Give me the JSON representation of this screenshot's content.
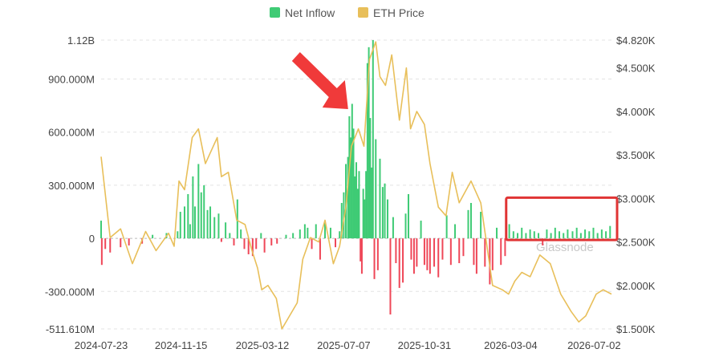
{
  "chart_data": {
    "type": "bar+line",
    "legend": [
      {
        "name": "Net Inflow",
        "color": "#3fcb75"
      },
      {
        "name": "ETH Price",
        "color": "#e8bf5a"
      }
    ],
    "legend_position": "top-center",
    "colors": {
      "inflow_positive": "#3fcb75",
      "inflow_negative": "#ef4758",
      "price_line": "#e8bf5a",
      "highlight_box": "#e03434",
      "arrow": "#f03a3a",
      "grid": "#e3e3e3"
    },
    "x_ticks": [
      "2024-07-23",
      "2024-11-15",
      "2025-03-12",
      "2025-07-07",
      "2025-10-31",
      "2026-03-04",
      "2026-07-02"
    ],
    "x_range": [
      "2024-07-23",
      "2026-07-27"
    ],
    "y_left": {
      "ticks": [
        {
          "v": 1120,
          "label": "1.12B"
        },
        {
          "v": 900,
          "label": "900.000M"
        },
        {
          "v": 600,
          "label": "600.000M"
        },
        {
          "v": 300,
          "label": "300.000M"
        },
        {
          "v": 0,
          "label": "0"
        },
        {
          "v": -300,
          "label": "-300.000M"
        },
        {
          "v": -511.61,
          "label": "-511.610M"
        }
      ],
      "range": [
        -511.61,
        1120
      ],
      "unit": "millions USD"
    },
    "y_right": {
      "ticks": [
        {
          "v": 4820,
          "label": "$4.820K"
        },
        {
          "v": 4500,
          "label": "$4.500K"
        },
        {
          "v": 4000,
          "label": "$4.000K"
        },
        {
          "v": 3500,
          "label": "$3.500K"
        },
        {
          "v": 3000,
          "label": "$3.000K"
        },
        {
          "v": 2500,
          "label": "$2.500K"
        },
        {
          "v": 2000,
          "label": "$2.000K"
        },
        {
          "v": 1500,
          "label": "$1.500K"
        }
      ],
      "range": [
        1500,
        4820
      ],
      "unit": "USD"
    },
    "grid": "horizontal",
    "net_inflow": [
      [
        "2024-07-23",
        100
      ],
      [
        "2024-07-24",
        -150
      ],
      [
        "2024-07-29",
        -60
      ],
      [
        "2024-08-05",
        -80
      ],
      [
        "2024-08-20",
        -50
      ],
      [
        "2024-09-01",
        -40
      ],
      [
        "2024-09-20",
        -30
      ],
      [
        "2024-10-05",
        20
      ],
      [
        "2024-10-25",
        30
      ],
      [
        "2024-11-10",
        40
      ],
      [
        "2024-11-14",
        150
      ],
      [
        "2024-11-20",
        180
      ],
      [
        "2024-11-25",
        250
      ],
      [
        "2024-11-28",
        80
      ],
      [
        "2024-12-02",
        350
      ],
      [
        "2024-12-05",
        180
      ],
      [
        "2024-12-10",
        420
      ],
      [
        "2024-12-14",
        260
      ],
      [
        "2024-12-18",
        300
      ],
      [
        "2024-12-23",
        160
      ],
      [
        "2024-12-27",
        180
      ],
      [
        "2025-01-02",
        120
      ],
      [
        "2025-01-08",
        140
      ],
      [
        "2025-01-12",
        -20
      ],
      [
        "2025-01-18",
        90
      ],
      [
        "2025-01-24",
        30
      ],
      [
        "2025-01-30",
        -40
      ],
      [
        "2025-02-04",
        220
      ],
      [
        "2025-02-09",
        50
      ],
      [
        "2025-02-14",
        -60
      ],
      [
        "2025-02-20",
        -90
      ],
      [
        "2025-02-26",
        -100
      ],
      [
        "2025-03-03",
        -60
      ],
      [
        "2025-03-10",
        30
      ],
      [
        "2025-03-15",
        -80
      ],
      [
        "2025-03-25",
        -40
      ],
      [
        "2025-04-02",
        -30
      ],
      [
        "2025-04-15",
        20
      ],
      [
        "2025-04-25",
        30
      ],
      [
        "2025-05-05",
        50
      ],
      [
        "2025-05-12",
        80
      ],
      [
        "2025-05-16",
        60
      ],
      [
        "2025-05-22",
        -60
      ],
      [
        "2025-05-28",
        80
      ],
      [
        "2025-06-03",
        -120
      ],
      [
        "2025-06-10",
        100
      ],
      [
        "2025-06-18",
        60
      ],
      [
        "2025-06-25",
        -50
      ],
      [
        "2025-07-01",
        40
      ],
      [
        "2025-07-04",
        200
      ],
      [
        "2025-07-07",
        260
      ],
      [
        "2025-07-10",
        420
      ],
      [
        "2025-07-13",
        460
      ],
      [
        "2025-07-15",
        690
      ],
      [
        "2025-07-17",
        570
      ],
      [
        "2025-07-19",
        760
      ],
      [
        "2025-07-21",
        620
      ],
      [
        "2025-07-23",
        350
      ],
      [
        "2025-07-25",
        430
      ],
      [
        "2025-07-27",
        280
      ],
      [
        "2025-07-29",
        380
      ],
      [
        "2025-07-31",
        -130
      ],
      [
        "2025-08-02",
        -200
      ],
      [
        "2025-08-04",
        280
      ],
      [
        "2025-08-06",
        220
      ],
      [
        "2025-08-08",
        380
      ],
      [
        "2025-08-10",
        990
      ],
      [
        "2025-08-12",
        1080
      ],
      [
        "2025-08-14",
        680
      ],
      [
        "2025-08-16",
        400
      ],
      [
        "2025-08-18",
        1120
      ],
      [
        "2025-08-20",
        -230
      ],
      [
        "2025-08-22",
        560
      ],
      [
        "2025-08-25",
        -180
      ],
      [
        "2025-08-28",
        450
      ],
      [
        "2025-09-01",
        290
      ],
      [
        "2025-09-04",
        310
      ],
      [
        "2025-09-08",
        220
      ],
      [
        "2025-09-12",
        -430
      ],
      [
        "2025-09-16",
        120
      ],
      [
        "2025-09-20",
        -140
      ],
      [
        "2025-09-25",
        -280
      ],
      [
        "2025-09-30",
        -250
      ],
      [
        "2025-10-04",
        140
      ],
      [
        "2025-10-08",
        250
      ],
      [
        "2025-10-12",
        -120
      ],
      [
        "2025-10-16",
        -200
      ],
      [
        "2025-10-20",
        -160
      ],
      [
        "2025-10-26",
        100
      ],
      [
        "2025-10-31",
        -150
      ],
      [
        "2025-11-04",
        -180
      ],
      [
        "2025-11-08",
        -200
      ],
      [
        "2025-11-14",
        -160
      ],
      [
        "2025-11-20",
        -220
      ],
      [
        "2025-11-26",
        -120
      ],
      [
        "2025-12-02",
        130
      ],
      [
        "2025-12-08",
        -150
      ],
      [
        "2025-12-14",
        80
      ],
      [
        "2025-12-20",
        -140
      ],
      [
        "2025-12-26",
        -100
      ],
      [
        "2026-01-02",
        160
      ],
      [
        "2026-01-06",
        200
      ],
      [
        "2026-01-10",
        -150
      ],
      [
        "2026-01-14",
        -200
      ],
      [
        "2026-01-20",
        150
      ],
      [
        "2026-01-26",
        -160
      ],
      [
        "2026-02-02",
        -260
      ],
      [
        "2026-02-06",
        -180
      ],
      [
        "2026-02-12",
        60
      ],
      [
        "2026-02-18",
        -150
      ],
      [
        "2026-02-24",
        -100
      ],
      [
        "2026-03-02",
        80
      ],
      [
        "2026-03-08",
        40
      ],
      [
        "2026-03-14",
        30
      ],
      [
        "2026-03-20",
        60
      ],
      [
        "2026-03-26",
        30
      ],
      [
        "2026-04-01",
        50
      ],
      [
        "2026-04-07",
        40
      ],
      [
        "2026-04-13",
        30
      ],
      [
        "2026-04-19",
        -40
      ],
      [
        "2026-04-25",
        50
      ],
      [
        "2026-05-01",
        30
      ],
      [
        "2026-05-07",
        60
      ],
      [
        "2026-05-13",
        40
      ],
      [
        "2026-05-19",
        30
      ],
      [
        "2026-05-25",
        50
      ],
      [
        "2026-06-01",
        40
      ],
      [
        "2026-06-07",
        60
      ],
      [
        "2026-06-13",
        30
      ],
      [
        "2026-06-19",
        50
      ],
      [
        "2026-06-25",
        40
      ],
      [
        "2026-07-01",
        60
      ],
      [
        "2026-07-07",
        30
      ],
      [
        "2026-07-13",
        50
      ],
      [
        "2026-07-19",
        40
      ],
      [
        "2026-07-25",
        70
      ]
    ],
    "eth_price": [
      [
        "2024-07-23",
        3480
      ],
      [
        "2024-08-05",
        2550
      ],
      [
        "2024-08-20",
        2650
      ],
      [
        "2024-09-06",
        2250
      ],
      [
        "2024-09-25",
        2620
      ],
      [
        "2024-10-10",
        2400
      ],
      [
        "2024-10-28",
        2600
      ],
      [
        "2024-11-05",
        2450
      ],
      [
        "2024-11-12",
        3200
      ],
      [
        "2024-11-20",
        3100
      ],
      [
        "2024-12-01",
        3700
      ],
      [
        "2024-12-10",
        3800
      ],
      [
        "2024-12-20",
        3400
      ],
      [
        "2025-01-06",
        3700
      ],
      [
        "2025-01-12",
        3250
      ],
      [
        "2025-01-22",
        3300
      ],
      [
        "2025-02-03",
        2750
      ],
      [
        "2025-02-15",
        2700
      ],
      [
        "2025-02-25",
        2400
      ],
      [
        "2025-03-05",
        2200
      ],
      [
        "2025-03-11",
        1950
      ],
      [
        "2025-03-20",
        2000
      ],
      [
        "2025-04-01",
        1850
      ],
      [
        "2025-04-09",
        1500
      ],
      [
        "2025-04-20",
        1650
      ],
      [
        "2025-05-01",
        1800
      ],
      [
        "2025-05-09",
        2300
      ],
      [
        "2025-05-20",
        2550
      ],
      [
        "2025-06-01",
        2500
      ],
      [
        "2025-06-10",
        2750
      ],
      [
        "2025-06-22",
        2250
      ],
      [
        "2025-07-01",
        2450
      ],
      [
        "2025-07-10",
        2900
      ],
      [
        "2025-07-18",
        3600
      ],
      [
        "2025-07-28",
        3800
      ],
      [
        "2025-08-05",
        3600
      ],
      [
        "2025-08-13",
        4600
      ],
      [
        "2025-08-22",
        4800
      ],
      [
        "2025-08-28",
        4400
      ],
      [
        "2025-09-05",
        4300
      ],
      [
        "2025-09-14",
        4650
      ],
      [
        "2025-09-25",
        3900
      ],
      [
        "2025-10-05",
        4500
      ],
      [
        "2025-10-11",
        3800
      ],
      [
        "2025-10-20",
        4000
      ],
      [
        "2025-10-31",
        3850
      ],
      [
        "2025-11-08",
        3400
      ],
      [
        "2025-11-20",
        2900
      ],
      [
        "2025-12-01",
        2800
      ],
      [
        "2025-12-10",
        3300
      ],
      [
        "2025-12-20",
        2950
      ],
      [
        "2026-01-06",
        3200
      ],
      [
        "2026-01-20",
        2950
      ],
      [
        "2026-02-06",
        2000
      ],
      [
        "2026-02-20",
        1950
      ],
      [
        "2026-03-01",
        1900
      ],
      [
        "2026-03-10",
        2050
      ],
      [
        "2026-03-20",
        2150
      ],
      [
        "2026-04-01",
        2100
      ],
      [
        "2026-04-15",
        2350
      ],
      [
        "2026-04-30",
        2250
      ],
      [
        "2026-05-15",
        1900
      ],
      [
        "2026-05-30",
        1700
      ],
      [
        "2026-06-10",
        1580
      ],
      [
        "2026-06-20",
        1650
      ],
      [
        "2026-07-05",
        1900
      ],
      [
        "2026-07-15",
        1950
      ],
      [
        "2026-07-27",
        1900
      ]
    ],
    "annotations": {
      "arrow_target": "2025-07-19",
      "highlight_range": [
        "2026-03-01",
        "2026-07-27"
      ],
      "highlight_y": [
        0,
        230
      ]
    },
    "watermark": "Glassnode"
  }
}
